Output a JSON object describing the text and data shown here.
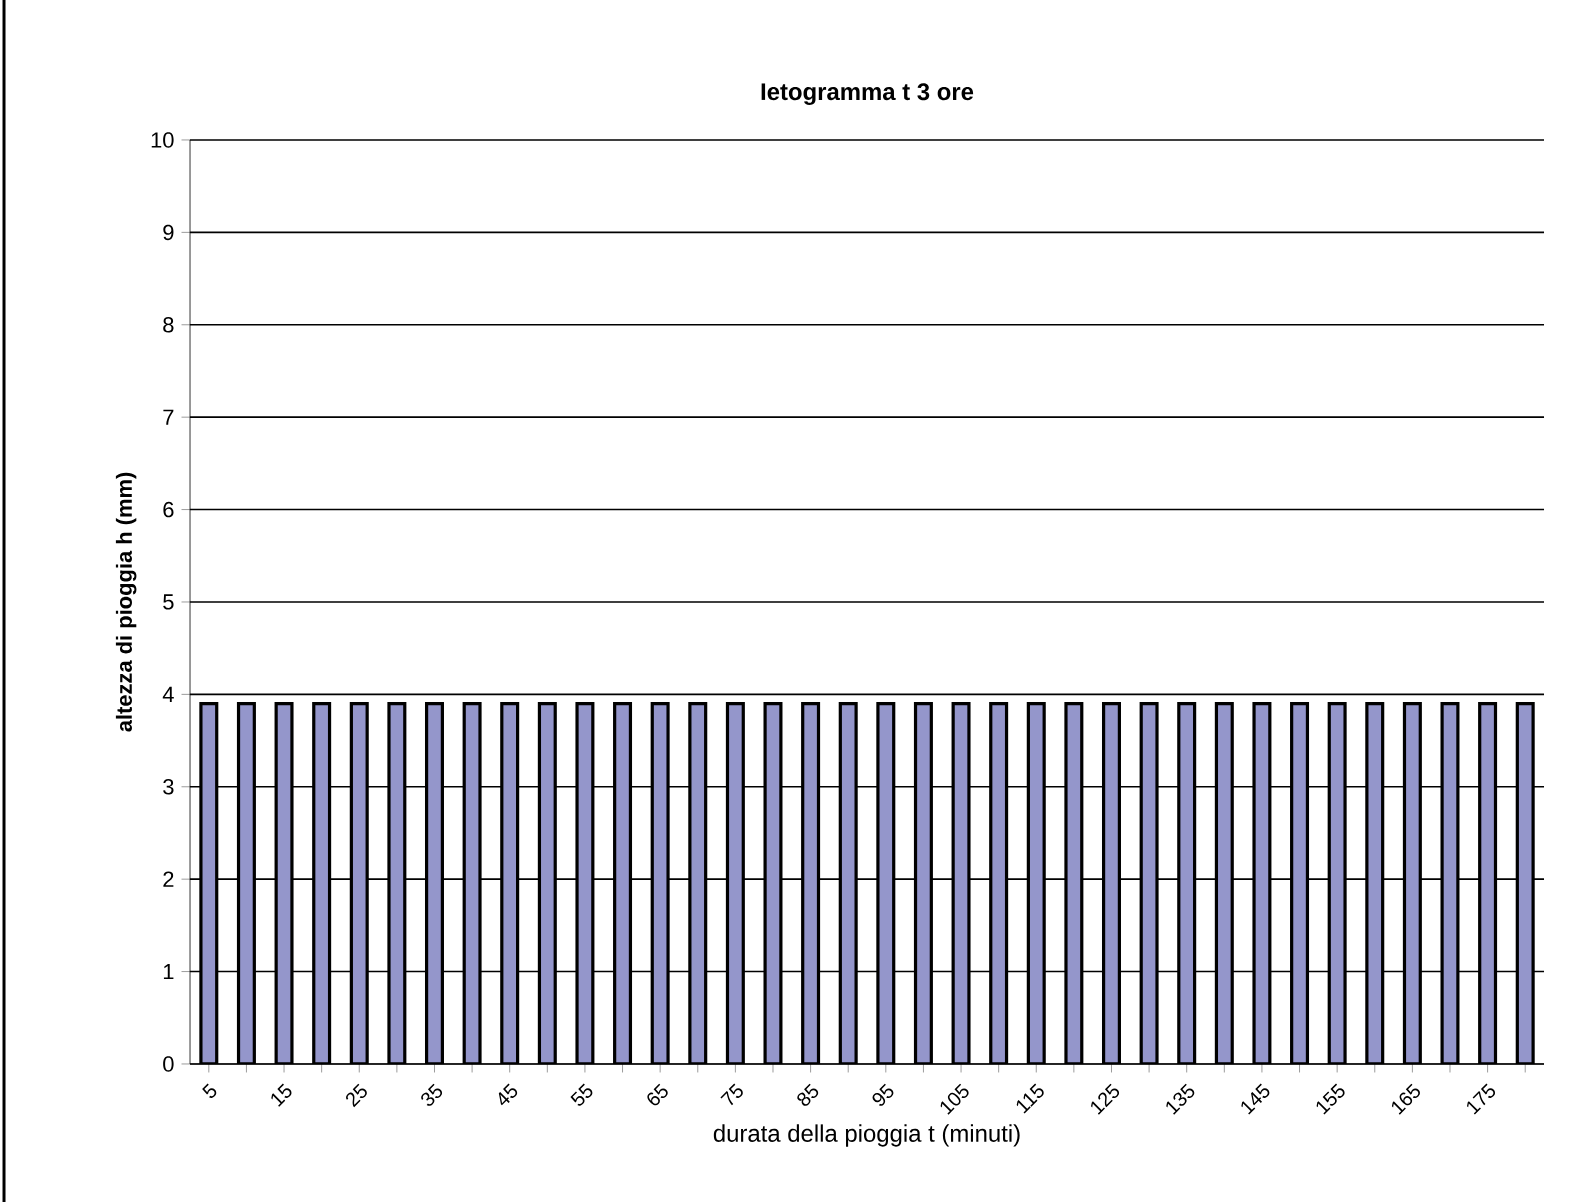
{
  "chart_data": {
    "type": "bar",
    "title": "Ietogramma t 3 ore",
    "xlabel": "durata della pioggia t (minuti)",
    "ylabel": "altezza di pioggia h (mm)",
    "categories": [
      "5",
      null,
      "15",
      null,
      "25",
      null,
      "35",
      null,
      "45",
      null,
      "55",
      null,
      "65",
      null,
      "75",
      null,
      "85",
      null,
      "95",
      null,
      "105",
      null,
      "115",
      null,
      "125",
      null,
      "135",
      null,
      "145",
      null,
      "155",
      null,
      "165",
      null,
      "175",
      null
    ],
    "values": [
      3.9,
      3.9,
      3.9,
      3.9,
      3.9,
      3.9,
      3.9,
      3.9,
      3.9,
      3.9,
      3.9,
      3.9,
      3.9,
      3.9,
      3.9,
      3.9,
      3.9,
      3.9,
      3.9,
      3.9,
      3.9,
      3.9,
      3.9,
      3.9,
      3.9,
      3.9,
      3.9,
      3.9,
      3.9,
      3.9,
      3.9,
      3.9,
      3.9,
      3.9,
      3.9,
      3.9
    ],
    "color": "#9496cb",
    "ylim": [
      0,
      10
    ],
    "yticks": [
      0,
      1,
      2,
      3,
      4,
      5,
      6,
      7,
      8,
      9,
      10
    ],
    "grid": "y"
  }
}
